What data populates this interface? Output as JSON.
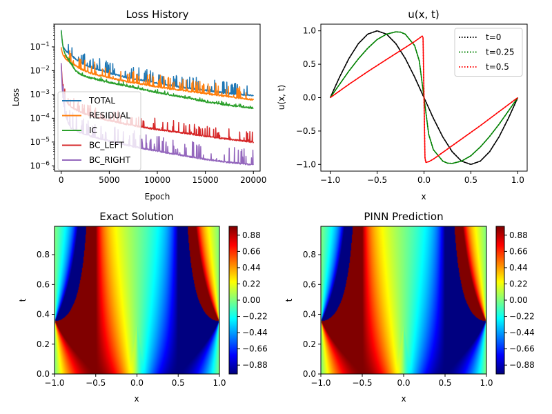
{
  "chart_data": [
    {
      "type": "line",
      "title": "Loss History",
      "xlabel": "Epoch",
      "ylabel": "Loss",
      "xlim": [
        -700,
        20700
      ],
      "ylim": [
        6e-07,
        0.9
      ],
      "yscale": "log",
      "x_ticks": [
        0,
        5000,
        10000,
        15000,
        20000
      ],
      "y_ticks": [
        1e-06,
        1e-05,
        0.0001,
        0.001,
        0.01,
        0.1
      ],
      "y_tick_labels": [
        [
          "10",
          "−6"
        ],
        [
          "10",
          "−5"
        ],
        [
          "10",
          "−4"
        ],
        [
          "10",
          "−3"
        ],
        [
          "10",
          "−2"
        ],
        [
          "10",
          "−1"
        ]
      ],
      "legend": "lower-left",
      "series": [
        {
          "name": "TOTAL",
          "color": "#1f77b4",
          "x": [
            0,
            100,
            200,
            500,
            1000,
            2000,
            3000,
            5000,
            7000,
            10000,
            12500,
            15000,
            17500,
            20000
          ],
          "values": [
            0.5,
            0.16,
            0.1,
            0.065,
            0.045,
            0.022,
            0.014,
            0.008,
            0.005,
            0.003,
            0.002,
            0.0015,
            0.0011,
            0.0009
          ],
          "spikiness": 0.35
        },
        {
          "name": "RESIDUAL",
          "color": "#ff7f0e",
          "x": [
            0,
            100,
            200,
            500,
            1000,
            2000,
            3000,
            5000,
            7000,
            10000,
            12500,
            15000,
            17500,
            20000
          ],
          "values": [
            0.09,
            0.06,
            0.045,
            0.03,
            0.022,
            0.012,
            0.008,
            0.005,
            0.0034,
            0.0021,
            0.0015,
            0.0011,
            0.0008,
            0.0006
          ],
          "spikiness": 0.35
        },
        {
          "name": "IC",
          "color": "#2ca02c",
          "x": [
            0,
            100,
            200,
            500,
            1000,
            1500,
            2000,
            3000,
            5000,
            7500,
            10000,
            12500,
            15000,
            17500,
            20000
          ],
          "values": [
            0.5,
            0.2,
            0.09,
            0.04,
            0.02,
            0.01,
            0.007,
            0.005,
            0.0032,
            0.002,
            0.0012,
            0.0008,
            0.0005,
            0.00035,
            0.00027
          ],
          "spikiness": 0.05
        },
        {
          "name": "BC_LEFT",
          "color": "#d62728",
          "x": [
            0,
            100,
            200,
            400,
            700,
            1000,
            2000,
            3000,
            5000,
            7500,
            10000,
            12500,
            15000,
            17500,
            20000
          ],
          "values": [
            0.02,
            0.004,
            0.0015,
            0.0006,
            0.0004,
            0.0003,
            0.00018,
            0.00013,
            8e-05,
            5e-05,
            3.4e-05,
            2.5e-05,
            1.8e-05,
            1.3e-05,
            1e-05
          ],
          "spikiness": 0.3
        },
        {
          "name": "BC_RIGHT",
          "color": "#9467bd",
          "x": [
            0,
            100,
            200,
            400,
            700,
            1000,
            2000,
            3000,
            5000,
            7500,
            10000,
            12500,
            15000,
            17500,
            20000
          ],
          "values": [
            0.02,
            0.002,
            0.0005,
            0.00015,
            7e-05,
            4e-05,
            2.5e-05,
            1.8e-05,
            1.1e-05,
            6.5e-06,
            4.2e-06,
            2.8e-06,
            1.9e-06,
            1.4e-06,
            1.1e-06
          ],
          "spikiness": 0.6
        }
      ]
    },
    {
      "type": "line",
      "title": "u(x, t)",
      "xlabel": "x",
      "ylabel": "u(x, t)",
      "xlim": [
        -1.1,
        1.1
      ],
      "ylim": [
        -1.1,
        1.1
      ],
      "x_ticks": [
        -1.0,
        -0.5,
        0.0,
        0.5,
        1.0
      ],
      "x_tick_labels": [
        "−1.0",
        "−0.5",
        "0.0",
        "0.5",
        "1.0"
      ],
      "y_ticks": [
        -1.0,
        -0.5,
        0.0,
        0.5,
        1.0
      ],
      "y_tick_labels": [
        "−1.0",
        "−0.5",
        "0.0",
        "0.5",
        "1.0"
      ],
      "legend": "upper-right",
      "series": [
        {
          "name": "t=0",
          "color": "#000000",
          "style": "dotted-with-solid",
          "x": [
            -1.0,
            -0.9,
            -0.8,
            -0.7,
            -0.6,
            -0.5,
            -0.4,
            -0.3,
            -0.2,
            -0.1,
            0.0,
            0.1,
            0.2,
            0.3,
            0.4,
            0.5,
            0.6,
            0.7,
            0.8,
            0.9,
            1.0
          ],
          "values": [
            0.0,
            0.309,
            0.588,
            0.809,
            0.951,
            1.0,
            0.951,
            0.809,
            0.588,
            0.309,
            0.0,
            -0.309,
            -0.588,
            -0.809,
            -0.951,
            -1.0,
            -0.951,
            -0.809,
            -0.588,
            -0.309,
            0.0
          ]
        },
        {
          "name": "t=0.25",
          "color": "#008000",
          "style": "dotted-with-solid",
          "x": [
            -1.0,
            -0.9,
            -0.8,
            -0.7,
            -0.6,
            -0.5,
            -0.4,
            -0.3,
            -0.25,
            -0.2,
            -0.1,
            -0.05,
            0.0,
            0.05,
            0.1,
            0.2,
            0.25,
            0.3,
            0.4,
            0.5,
            0.6,
            0.7,
            0.8,
            0.9,
            1.0
          ],
          "values": [
            0.0,
            0.2,
            0.4,
            0.58,
            0.74,
            0.87,
            0.95,
            0.985,
            0.98,
            0.95,
            0.78,
            0.55,
            0.0,
            -0.55,
            -0.78,
            -0.95,
            -0.98,
            -0.985,
            -0.95,
            -0.87,
            -0.74,
            -0.58,
            -0.4,
            -0.2,
            0.0
          ]
        },
        {
          "name": "t=0.5",
          "color": "#ff0000",
          "style": "dotted-with-solid",
          "x": [
            -1.0,
            -0.8,
            -0.6,
            -0.4,
            -0.2,
            -0.1,
            -0.05,
            -0.02,
            -0.01,
            0.0,
            0.01,
            0.02,
            0.05,
            0.1,
            0.2,
            0.4,
            0.6,
            0.8,
            1.0
          ],
          "values": [
            0.0,
            0.2,
            0.39,
            0.57,
            0.75,
            0.84,
            0.89,
            0.92,
            0.9,
            0.0,
            -0.9,
            -0.97,
            -0.96,
            -0.92,
            -0.82,
            -0.62,
            -0.42,
            -0.21,
            0.0
          ]
        }
      ]
    },
    {
      "type": "heatmap",
      "title": "Exact Solution",
      "xlabel": "x",
      "ylabel": "t",
      "xlim": [
        -1.0,
        1.0
      ],
      "ylim": [
        0.0,
        0.99
      ],
      "x_ticks": [
        -1.0,
        -0.5,
        0.0,
        0.5,
        1.0
      ],
      "x_tick_labels": [
        "−1.0",
        "−0.5",
        "0.0",
        "0.5",
        "1.0"
      ],
      "y_ticks": [
        0.0,
        0.2,
        0.4,
        0.6,
        0.8
      ],
      "y_tick_labels": [
        "0.0",
        "0.2",
        "0.4",
        "0.6",
        "0.8"
      ],
      "colormap": "jet",
      "vmin": -1.0,
      "vmax": 1.0,
      "colorbar_ticks": [
        0.88,
        0.66,
        0.44,
        0.22,
        0.0,
        -0.22,
        -0.44,
        -0.66,
        -0.88
      ],
      "colorbar_tick_labels": [
        "0.88",
        "0.66",
        "0.44",
        "0.22",
        "0.00",
        "−0.22",
        "−0.44",
        "−0.66",
        "−0.88"
      ]
    },
    {
      "type": "heatmap",
      "title": "PINN Prediction",
      "xlabel": "x",
      "ylabel": "t",
      "xlim": [
        -1.0,
        1.0
      ],
      "ylim": [
        0.0,
        0.99
      ],
      "x_ticks": [
        -1.0,
        -0.5,
        0.0,
        0.5,
        1.0
      ],
      "x_tick_labels": [
        "−1.0",
        "−0.5",
        "0.0",
        "0.5",
        "1.0"
      ],
      "y_ticks": [
        0.0,
        0.2,
        0.4,
        0.6,
        0.8
      ],
      "y_tick_labels": [
        "0.0",
        "0.2",
        "0.4",
        "0.6",
        "0.8"
      ],
      "colormap": "jet",
      "vmin": -1.0,
      "vmax": 1.0,
      "colorbar_ticks": [
        0.88,
        0.66,
        0.44,
        0.22,
        0.0,
        -0.22,
        -0.44,
        -0.66,
        -0.88
      ],
      "colorbar_tick_labels": [
        "0.88",
        "0.66",
        "0.44",
        "0.22",
        "0.00",
        "−0.22",
        "−0.44",
        "−0.66",
        "−0.88"
      ]
    }
  ]
}
